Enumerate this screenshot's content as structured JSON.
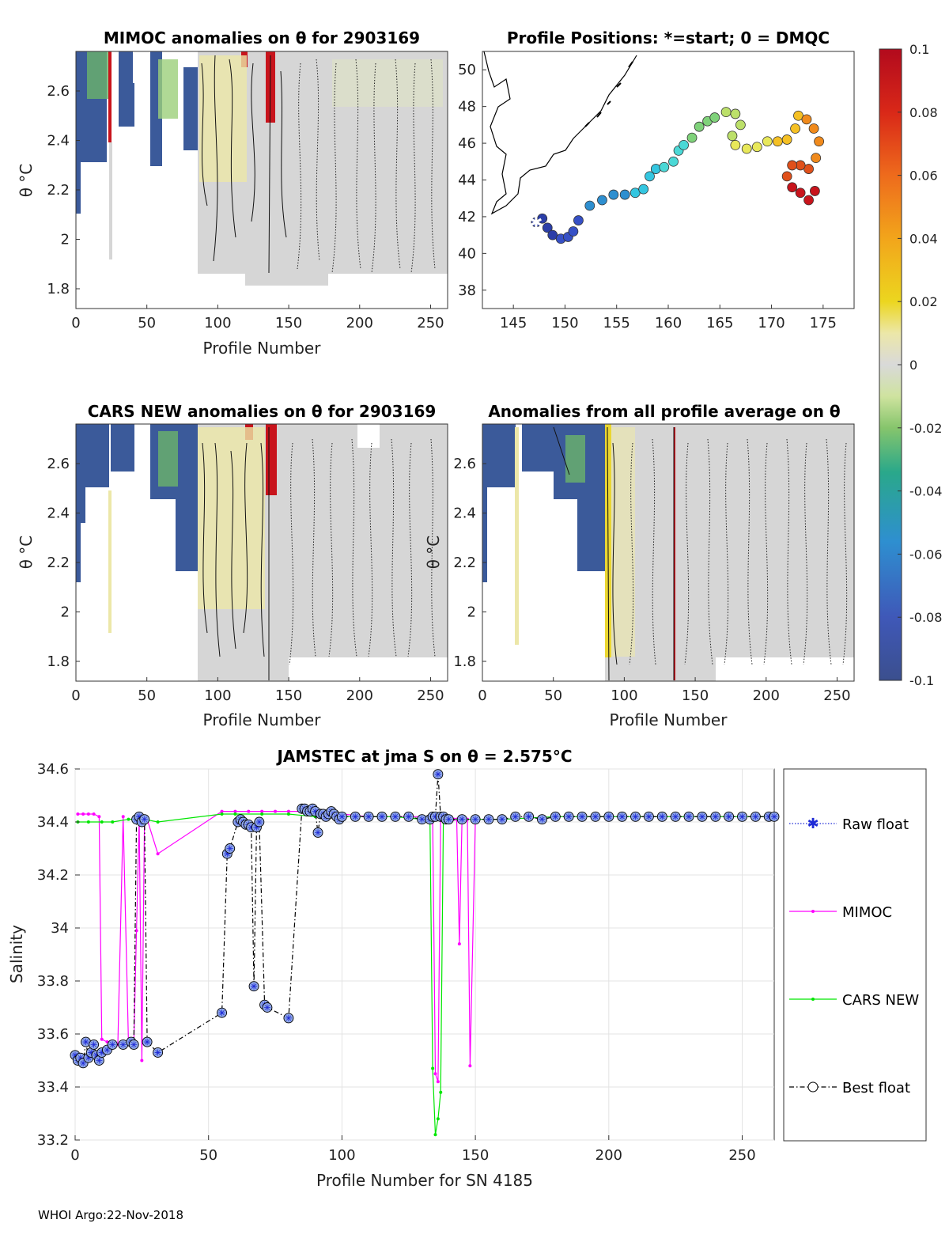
{
  "footer": "WHOI Argo:22-Nov-2018",
  "colorbar": {
    "ticks": [
      "0.1",
      "0.08",
      "0.06",
      "0.04",
      "0.02",
      "0",
      "-0.02",
      "-0.04",
      "-0.06",
      "-0.08",
      "-0.1"
    ],
    "range": [
      -0.1,
      0.1
    ]
  },
  "chart_data": [
    {
      "id": "mimoc",
      "type": "heatmap",
      "title": "MIMOC anomalies on θ  for 2903169",
      "xlabel": "Profile Number",
      "ylabel": "θ °C",
      "xlim": [
        0,
        262
      ],
      "ylim": [
        1.72,
        2.76
      ],
      "xticks": [
        "0",
        "50",
        "100",
        "150",
        "200",
        "250"
      ],
      "yticks": [
        "1.8",
        "2",
        "2.2",
        "2.4",
        "2.6"
      ]
    },
    {
      "id": "positions",
      "type": "scatter",
      "title": "Profile Positions: *=start; 0 = DMQC",
      "xlim": [
        142,
        178
      ],
      "ylim": [
        37,
        51
      ],
      "xticks": [
        "145",
        "150",
        "155",
        "160",
        "165",
        "170",
        "175"
      ],
      "yticks": [
        "38",
        "40",
        "42",
        "44",
        "46",
        "48",
        "50"
      ],
      "start": [
        147.2,
        41.7
      ]
    },
    {
      "id": "cars",
      "type": "heatmap",
      "title": "CARS NEW anomalies on θ for 2903169",
      "xlabel": "Profile Number",
      "ylabel": "θ °C",
      "xlim": [
        0,
        262
      ],
      "ylim": [
        1.72,
        2.76
      ],
      "xticks": [
        "0",
        "50",
        "100",
        "150",
        "200",
        "250"
      ],
      "yticks": [
        "1.8",
        "2",
        "2.2",
        "2.4",
        "2.6"
      ]
    },
    {
      "id": "allavg",
      "type": "heatmap",
      "title": "Anomalies from all profile average on θ",
      "xlabel": "Profile Number",
      "ylabel": "θ °C",
      "xlim": [
        0,
        262
      ],
      "ylim": [
        1.72,
        2.76
      ],
      "xticks": [
        "0",
        "50",
        "100",
        "150",
        "200",
        "250"
      ],
      "yticks": [
        "1.8",
        "2",
        "2.2",
        "2.4",
        "2.6"
      ]
    },
    {
      "id": "salinity",
      "type": "line",
      "title": "JAMSTEC at jma S on θ = 2.575°C",
      "xlabel": "Profile Number for SN 4185",
      "ylabel": "Salinity",
      "xlim": [
        0,
        262
      ],
      "ylim": [
        33.2,
        34.6
      ],
      "xticks": [
        "0",
        "50",
        "100",
        "150",
        "200",
        "250"
      ],
      "yticks": [
        "34.6",
        "34.4",
        "34.2",
        "34",
        "33.8",
        "33.6",
        "33.4",
        "33.2"
      ],
      "legend": [
        "Raw float",
        "MIMOC",
        "CARS NEW",
        "Best float"
      ],
      "legend_position": "outside-right",
      "series": [
        {
          "name": "MIMOC",
          "color": "#ff00ff",
          "x": [
            1,
            3,
            5,
            7,
            9,
            10,
            12,
            14,
            16,
            18,
            20,
            22,
            23,
            24,
            25,
            26,
            27,
            31,
            55,
            60,
            65,
            70,
            75,
            80,
            85,
            90,
            95,
            100,
            110,
            120,
            130,
            134,
            135,
            136,
            137,
            138,
            139,
            141,
            142,
            143,
            144,
            145,
            146,
            147,
            148,
            150,
            160,
            180,
            200,
            220,
            240,
            260
          ],
          "y": [
            34.43,
            34.43,
            34.43,
            34.43,
            34.42,
            33.58,
            33.57,
            33.56,
            33.56,
            34.42,
            33.56,
            33.56,
            33.99,
            34.41,
            33.5,
            34.41,
            34.41,
            34.28,
            34.44,
            34.44,
            34.44,
            34.44,
            34.44,
            34.44,
            34.44,
            34.43,
            34.43,
            34.43,
            34.42,
            34.42,
            34.42,
            34.42,
            33.45,
            33.42,
            34.42,
            34.41,
            34.41,
            34.41,
            34.41,
            34.41,
            33.94,
            34.41,
            34.41,
            34.41,
            33.48,
            34.41,
            34.41,
            34.42,
            34.42,
            34.42,
            34.42,
            34.42
          ]
        },
        {
          "name": "CARS NEW",
          "color": "#00e600",
          "x": [
            1,
            5,
            10,
            14,
            20,
            24,
            26,
            31,
            55,
            60,
            70,
            80,
            90,
            100,
            110,
            120,
            130,
            133,
            134,
            135,
            136,
            137,
            138,
            139,
            140,
            150,
            160,
            180,
            200,
            220,
            240,
            260
          ],
          "y": [
            34.4,
            34.4,
            34.4,
            34.4,
            34.41,
            34.41,
            34.41,
            34.4,
            34.43,
            34.43,
            34.43,
            34.43,
            34.42,
            34.42,
            34.42,
            34.42,
            34.41,
            34.41,
            33.47,
            33.22,
            33.28,
            33.38,
            34.4,
            34.41,
            34.41,
            34.41,
            34.41,
            34.42,
            34.42,
            34.42,
            34.42,
            34.42
          ]
        },
        {
          "name": "Best float",
          "color": "#000000",
          "marker_fill": "#8fa7e8",
          "x": [
            0,
            1,
            2,
            3,
            4,
            5,
            6,
            7,
            8,
            9,
            10,
            12,
            14,
            18,
            21,
            22,
            23,
            24,
            25,
            26,
            27,
            31,
            55,
            57,
            58,
            61,
            62,
            63,
            64,
            65,
            66,
            67,
            68,
            69,
            71,
            72,
            80,
            85,
            86,
            87,
            88,
            89,
            90,
            91,
            92,
            93,
            94,
            95,
            96,
            97,
            98,
            99,
            100,
            105,
            110,
            115,
            120,
            125,
            130,
            133,
            134,
            135,
            136,
            137,
            138,
            139,
            140,
            145,
            150,
            155,
            160,
            165,
            170,
            175,
            180,
            185,
            190,
            195,
            200,
            205,
            210,
            215,
            220,
            225,
            230,
            235,
            240,
            245,
            250,
            255,
            260,
            262
          ],
          "y": [
            33.52,
            33.5,
            33.51,
            33.49,
            33.57,
            33.51,
            33.53,
            33.56,
            33.52,
            33.5,
            33.53,
            33.54,
            33.56,
            33.56,
            33.57,
            33.56,
            34.41,
            34.42,
            34.4,
            34.41,
            33.57,
            33.53,
            33.68,
            34.28,
            34.3,
            34.4,
            34.41,
            34.4,
            34.39,
            34.39,
            34.38,
            33.78,
            34.38,
            34.4,
            33.71,
            33.7,
            33.66,
            34.45,
            34.45,
            34.44,
            34.44,
            34.45,
            34.44,
            34.36,
            34.43,
            34.43,
            34.42,
            34.43,
            34.44,
            34.43,
            34.42,
            34.41,
            34.42,
            34.42,
            34.42,
            34.42,
            34.42,
            34.42,
            34.41,
            34.41,
            34.42,
            34.42,
            34.58,
            34.42,
            34.42,
            34.41,
            34.41,
            34.41,
            34.41,
            34.41,
            34.41,
            34.42,
            34.42,
            34.41,
            34.42,
            34.42,
            34.42,
            34.42,
            34.42,
            34.42,
            34.42,
            34.42,
            34.42,
            34.42,
            34.42,
            34.42,
            34.42,
            34.42,
            34.42,
            34.42,
            34.42,
            34.42
          ]
        }
      ]
    }
  ]
}
